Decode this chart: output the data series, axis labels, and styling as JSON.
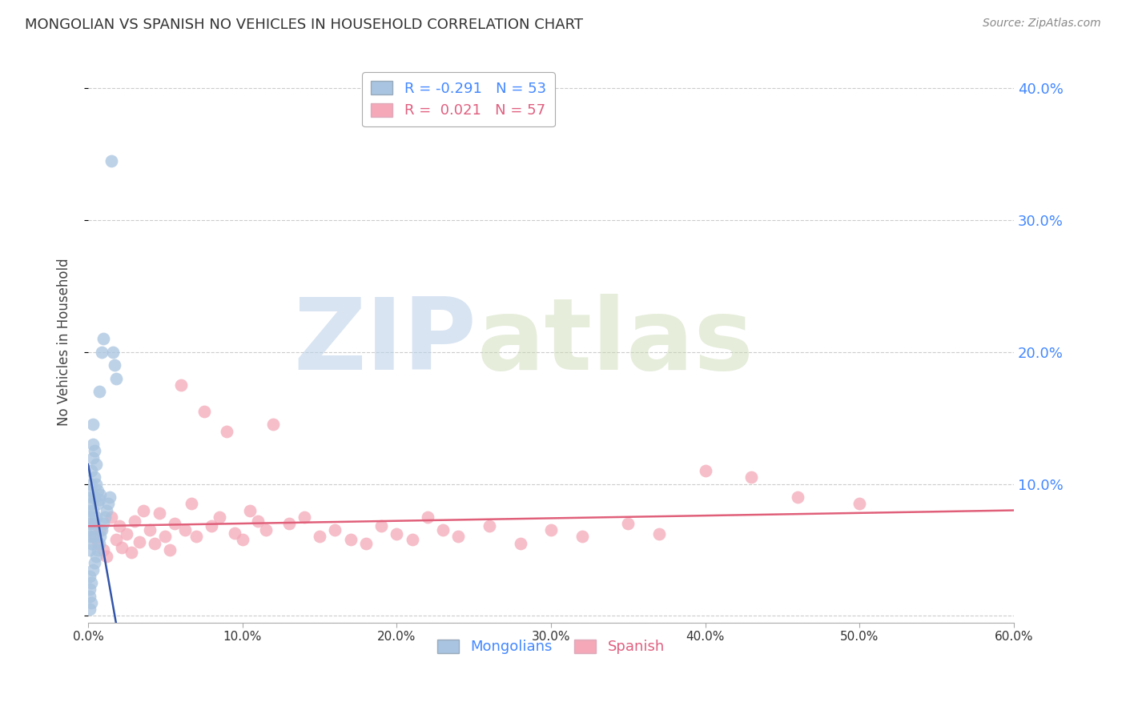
{
  "title": "MONGOLIAN VS SPANISH NO VEHICLES IN HOUSEHOLD CORRELATION CHART",
  "source": "Source: ZipAtlas.com",
  "ylabel": "No Vehicles in Household",
  "xlim": [
    0.0,
    0.6
  ],
  "ylim": [
    -0.005,
    0.42
  ],
  "xticks": [
    0.0,
    0.1,
    0.2,
    0.3,
    0.4,
    0.5,
    0.6
  ],
  "xtick_labels": [
    "0.0%",
    "10.0%",
    "20.0%",
    "30.0%",
    "40.0%",
    "50.0%",
    "60.0%"
  ],
  "yticks_right": [
    0.1,
    0.2,
    0.3,
    0.4
  ],
  "ytick_labels_right": [
    "10.0%",
    "20.0%",
    "30.0%",
    "40.0%"
  ],
  "blue_color": "#a8c4e0",
  "pink_color": "#f4a8b8",
  "blue_line_color": "#3355aa",
  "pink_line_color": "#e0607a",
  "blue_R": -0.291,
  "blue_N": 53,
  "pink_R": 0.021,
  "pink_N": 57,
  "watermark_zip": "ZIP",
  "watermark_atlas": "atlas",
  "background_color": "#ffffff",
  "grid_color": "#cccccc",
  "title_color": "#333333",
  "right_ytick_color": "#4488ff",
  "blue_scatter_x": [
    0.001,
    0.001,
    0.001,
    0.001,
    0.001,
    0.001,
    0.001,
    0.001,
    0.001,
    0.001,
    0.002,
    0.002,
    0.002,
    0.002,
    0.002,
    0.002,
    0.002,
    0.002,
    0.003,
    0.003,
    0.003,
    0.003,
    0.003,
    0.003,
    0.004,
    0.004,
    0.004,
    0.004,
    0.004,
    0.005,
    0.005,
    0.005,
    0.005,
    0.006,
    0.006,
    0.006,
    0.007,
    0.007,
    0.007,
    0.008,
    0.008,
    0.009,
    0.009,
    0.01,
    0.01,
    0.011,
    0.012,
    0.013,
    0.014,
    0.015,
    0.016,
    0.017,
    0.018
  ],
  "blue_scatter_y": [
    0.005,
    0.015,
    0.02,
    0.03,
    0.05,
    0.06,
    0.065,
    0.07,
    0.075,
    0.08,
    0.01,
    0.025,
    0.055,
    0.085,
    0.09,
    0.095,
    0.1,
    0.11,
    0.035,
    0.06,
    0.08,
    0.12,
    0.13,
    0.145,
    0.04,
    0.07,
    0.09,
    0.105,
    0.125,
    0.045,
    0.075,
    0.1,
    0.115,
    0.05,
    0.085,
    0.095,
    0.055,
    0.088,
    0.17,
    0.06,
    0.092,
    0.065,
    0.2,
    0.07,
    0.21,
    0.075,
    0.08,
    0.085,
    0.09,
    0.345,
    0.2,
    0.19,
    0.18
  ],
  "pink_scatter_x": [
    0.002,
    0.004,
    0.006,
    0.008,
    0.01,
    0.012,
    0.015,
    0.018,
    0.02,
    0.022,
    0.025,
    0.028,
    0.03,
    0.033,
    0.036,
    0.04,
    0.043,
    0.046,
    0.05,
    0.053,
    0.056,
    0.06,
    0.063,
    0.067,
    0.07,
    0.075,
    0.08,
    0.085,
    0.09,
    0.095,
    0.1,
    0.105,
    0.11,
    0.115,
    0.12,
    0.13,
    0.14,
    0.15,
    0.16,
    0.17,
    0.18,
    0.19,
    0.2,
    0.21,
    0.22,
    0.23,
    0.24,
    0.26,
    0.28,
    0.3,
    0.32,
    0.35,
    0.37,
    0.4,
    0.43,
    0.46,
    0.5
  ],
  "pink_scatter_y": [
    0.07,
    0.06,
    0.055,
    0.065,
    0.05,
    0.045,
    0.075,
    0.058,
    0.068,
    0.052,
    0.062,
    0.048,
    0.072,
    0.056,
    0.08,
    0.065,
    0.055,
    0.078,
    0.06,
    0.05,
    0.07,
    0.175,
    0.065,
    0.085,
    0.06,
    0.155,
    0.068,
    0.075,
    0.14,
    0.063,
    0.058,
    0.08,
    0.072,
    0.065,
    0.145,
    0.07,
    0.075,
    0.06,
    0.065,
    0.058,
    0.055,
    0.068,
    0.062,
    0.058,
    0.075,
    0.065,
    0.06,
    0.068,
    0.055,
    0.065,
    0.06,
    0.07,
    0.062,
    0.11,
    0.105,
    0.09,
    0.085
  ],
  "blue_line_x0": 0.0,
  "blue_line_x1": 0.018,
  "blue_line_y0": 0.115,
  "blue_line_y1": -0.005,
  "pink_line_x0": 0.0,
  "pink_line_x1": 0.6,
  "pink_line_y0": 0.068,
  "pink_line_y1": 0.08
}
